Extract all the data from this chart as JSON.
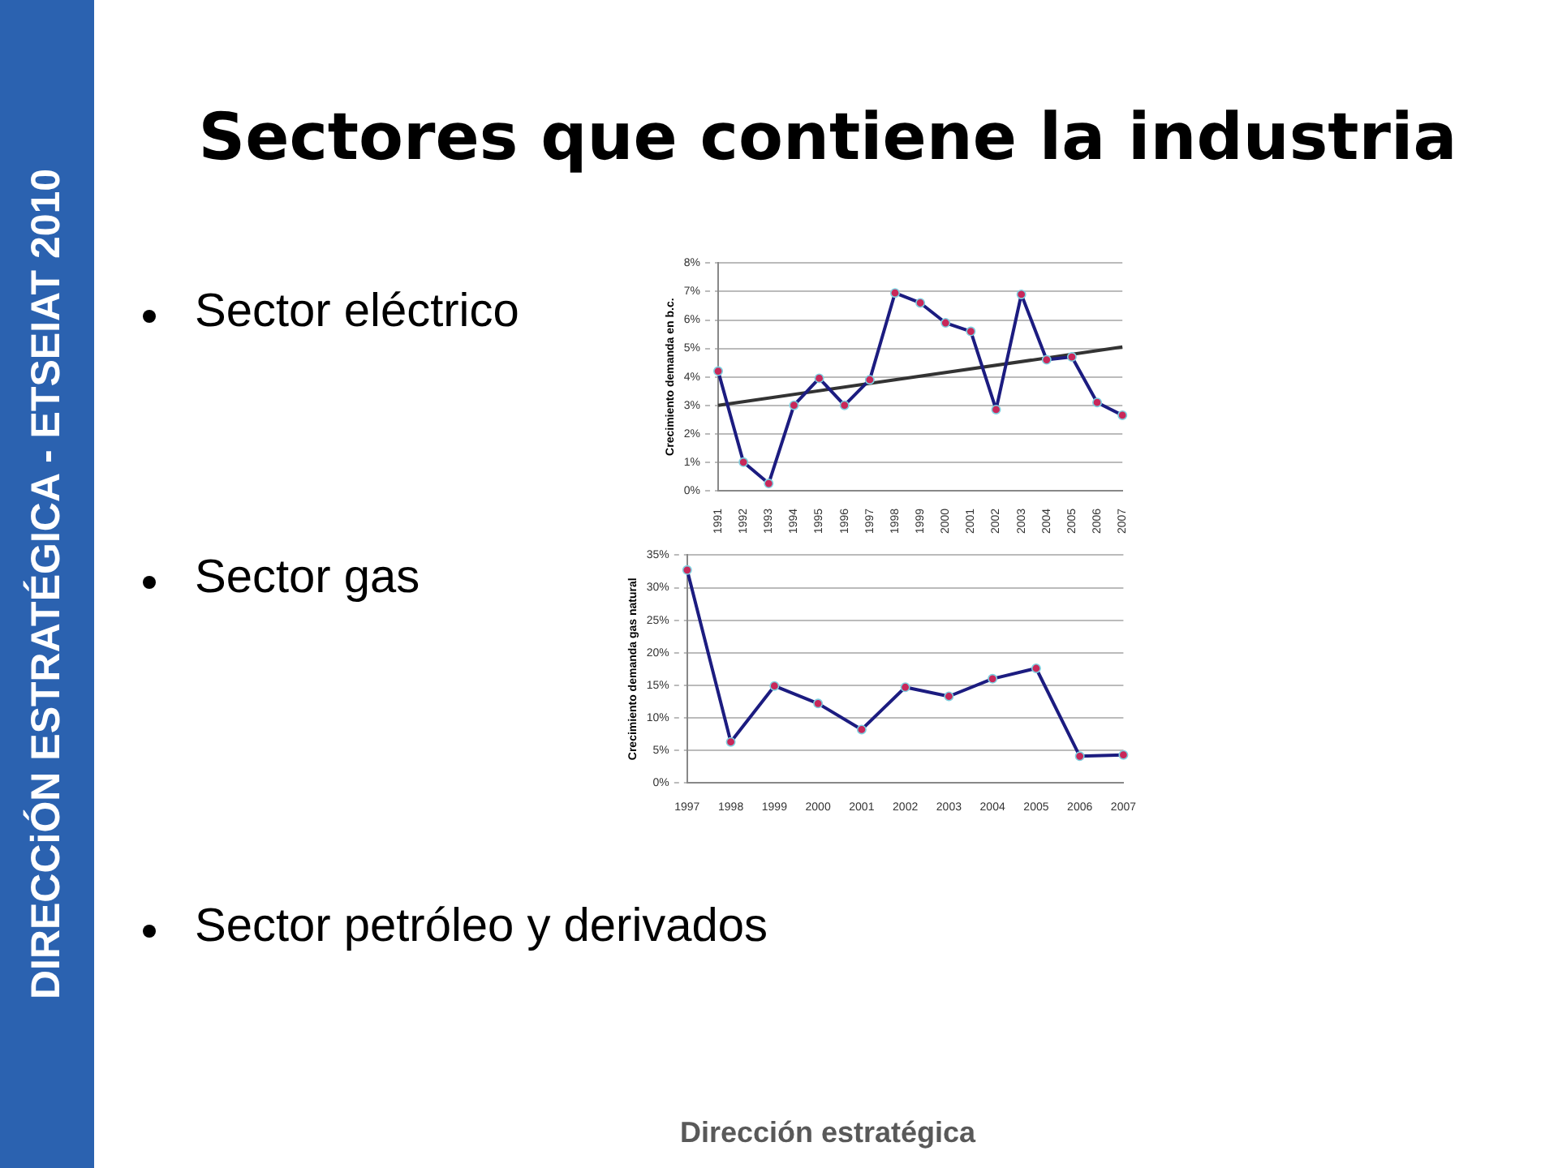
{
  "chart_data": [
    {
      "type": "other",
      "title": "Sectores que contiene la industria",
      "annotations": [
        "Sector eléctrico",
        "Sector gas",
        "Sector petróleo y derivados",
        "DIRECCiÓN ESTRATÉGICA - ETSEIAT 2010",
        "Dirección estratégica"
      ]
    },
    {
      "type": "line",
      "ylabel": "Crecimiento demanda en b.c.",
      "categories": [
        "1991",
        "1992",
        "1993",
        "1994",
        "1995",
        "1996",
        "1997",
        "1998",
        "1999",
        "2000",
        "2001",
        "2002",
        "2003",
        "2004",
        "2005",
        "2006",
        "2007"
      ],
      "series": [
        {
          "color": "#1c1c80",
          "colors": [
            "#c8285a",
            "#c8285a",
            "#c8285a",
            "#c8285a",
            "#c8285a",
            "#c8285a",
            "#c8285a",
            "#c8285a",
            "#c8285a",
            "#c8285a",
            "#c8285a",
            "#c8285a",
            "#c8285a",
            "#c8285a",
            "#c8285a",
            "#c8285a",
            "#c8285a"
          ],
          "values": [
            4.2,
            1.0,
            0.25,
            3.0,
            3.95,
            3.0,
            3.9,
            6.95,
            6.6,
            5.9,
            5.6,
            2.85,
            6.9,
            4.6,
            4.7,
            3.1,
            2.65
          ],
          "marker": "circle"
        },
        {
          "type": "line",
          "color": "#333333",
          "values": [
            3.0,
            null,
            null,
            null,
            null,
            null,
            null,
            null,
            null,
            null,
            null,
            null,
            null,
            null,
            null,
            null,
            5.05
          ],
          "marker": "none"
        }
      ],
      "ylim": [
        0,
        8
      ],
      "yticks": [
        {
          "value": 0,
          "label": "0%"
        },
        {
          "value": 1,
          "label": "1%"
        },
        {
          "value": 2,
          "label": "2%"
        },
        {
          "value": 3,
          "label": "3%"
        },
        {
          "value": 4,
          "label": "4%"
        },
        {
          "value": 5,
          "label": "5%"
        },
        {
          "value": 6,
          "label": "6%"
        },
        {
          "value": 7,
          "label": "7%"
        },
        {
          "value": 8,
          "label": "8%"
        }
      ],
      "grid": "y"
    },
    {
      "type": "line",
      "ylabel": "Crecimiento demanda gas natural",
      "categories": [
        "1997",
        "1998",
        "1999",
        "2000",
        "2001",
        "2002",
        "2003",
        "2004",
        "2005",
        "2006",
        "2007"
      ],
      "series": [
        {
          "color": "#1c1c80",
          "colors": [
            "#c8285a",
            "#c8285a",
            "#c8285a",
            "#c8285a",
            "#c8285a",
            "#c8285a",
            "#c8285a",
            "#c8285a",
            "#c8285a",
            "#c8285a",
            "#c8285a"
          ],
          "values": [
            32.7,
            6.3,
            14.9,
            12.2,
            8.2,
            14.7,
            13.3,
            16.0,
            17.6,
            4.1,
            4.3
          ],
          "marker": "circle"
        }
      ],
      "ylim": [
        0,
        35
      ],
      "yticks": [
        {
          "value": 0,
          "label": "0%"
        },
        {
          "value": 5,
          "label": "5%"
        },
        {
          "value": 10,
          "label": "10%"
        },
        {
          "value": 15,
          "label": "15%"
        },
        {
          "value": 20,
          "label": "20%"
        },
        {
          "value": 25,
          "label": "25%"
        },
        {
          "value": 30,
          "label": "30%"
        },
        {
          "value": 35,
          "label": "35%"
        }
      ],
      "grid": "y"
    }
  ]
}
